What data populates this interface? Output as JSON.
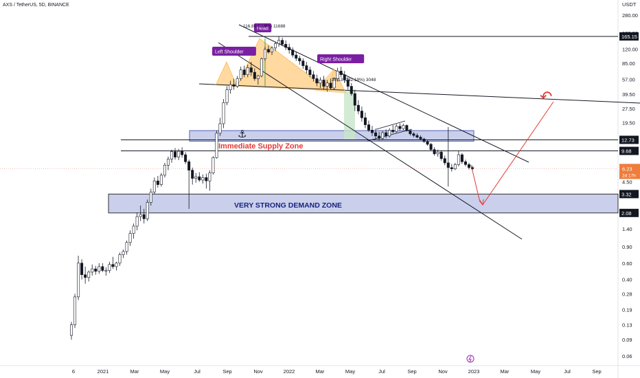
{
  "header": {
    "title": "AXS / TetherUS, 5D, BINANCE",
    "currency": "USDT"
  },
  "chart_data": {
    "type": "candlestick",
    "symbol": "AXS / TetherUS",
    "interval": "5D",
    "exchange": "BINANCE",
    "y_scale": "log",
    "y_ticks": [
      "280.00",
      "180.00",
      "120.00",
      "85.00",
      "57.00",
      "39.50",
      "27.50",
      "19.50",
      "12.73",
      "9.68",
      "6.23",
      "4.50",
      "3.32",
      "2.08",
      "1.40",
      "0.90",
      "0.60",
      "0.40",
      "0.28",
      "0.19",
      "0.13",
      "0.09",
      "0.06"
    ],
    "y_tick_values": [
      280,
      180,
      120,
      85,
      57,
      39.5,
      27.5,
      19.5,
      12.73,
      9.68,
      6.23,
      4.5,
      3.32,
      2.08,
      1.4,
      0.9,
      0.6,
      0.4,
      0.28,
      0.19,
      0.13,
      0.09,
      0.06
    ],
    "x_ticks": [
      "6",
      "2021",
      "Mar",
      "May",
      "Jul",
      "Sep",
      "Nov",
      "2022",
      "Mar",
      "May",
      "Jul",
      "Sep",
      "Nov",
      "2023",
      "Mar",
      "May",
      "Jul",
      "Sep"
    ],
    "price_labels": [
      {
        "value": 165.15,
        "text": "165.15",
        "style": "dark"
      },
      {
        "value": 12.73,
        "text": "12.73",
        "style": "dark"
      },
      {
        "value": 9.68,
        "text": "9.68",
        "style": "dark"
      },
      {
        "value": 6.23,
        "text": "6.23",
        "sub": "2d 17h",
        "style": "current"
      },
      {
        "value": 3.32,
        "text": "3.32",
        "style": "dark"
      },
      {
        "value": 2.08,
        "text": "2.08",
        "style": "dark"
      }
    ],
    "current_price": 6.23,
    "horizontal_levels": [
      165.15,
      12.73,
      9.68,
      3.32,
      2.08
    ],
    "zones": [
      {
        "name": "Immediate Supply Zone",
        "low": 12.73,
        "high": 16.0
      },
      {
        "name": "VERY STRONG DEMAND ZONE",
        "low": 2.08,
        "high": 3.32
      }
    ],
    "annotations": {
      "head": "Head",
      "left_shoulder": "Left Shoulder",
      "right_shoulder": "Right Shoulder",
      "supply_label": "Immediate Supply Zone",
      "demand_label": "VERY STRONG DEMAND ZONE",
      "measure_top": "116.88 (... 9%) 11688",
      "measure_mid": "30.13 (242.19%) 3048",
      "anchor": "⚓"
    },
    "candles": [
      {
        "o": 0.1,
        "h": 0.14,
        "l": 0.09,
        "c": 0.13
      },
      {
        "o": 0.13,
        "h": 0.28,
        "l": 0.12,
        "c": 0.26
      },
      {
        "o": 0.26,
        "h": 0.72,
        "l": 0.24,
        "c": 0.6
      },
      {
        "o": 0.6,
        "h": 0.66,
        "l": 0.4,
        "c": 0.45
      },
      {
        "o": 0.45,
        "h": 0.55,
        "l": 0.36,
        "c": 0.42
      },
      {
        "o": 0.42,
        "h": 0.5,
        "l": 0.38,
        "c": 0.48
      },
      {
        "o": 0.48,
        "h": 0.58,
        "l": 0.44,
        "c": 0.52
      },
      {
        "o": 0.52,
        "h": 0.56,
        "l": 0.45,
        "c": 0.49
      },
      {
        "o": 0.49,
        "h": 0.6,
        "l": 0.46,
        "c": 0.55
      },
      {
        "o": 0.55,
        "h": 0.6,
        "l": 0.48,
        "c": 0.5
      },
      {
        "o": 0.5,
        "h": 0.54,
        "l": 0.44,
        "c": 0.5
      },
      {
        "o": 0.5,
        "h": 0.62,
        "l": 0.47,
        "c": 0.58
      },
      {
        "o": 0.58,
        "h": 0.7,
        "l": 0.52,
        "c": 0.55
      },
      {
        "o": 0.55,
        "h": 0.62,
        "l": 0.5,
        "c": 0.6
      },
      {
        "o": 0.6,
        "h": 0.78,
        "l": 0.56,
        "c": 0.74
      },
      {
        "o": 0.74,
        "h": 0.84,
        "l": 0.68,
        "c": 0.8
      },
      {
        "o": 0.8,
        "h": 1.05,
        "l": 0.74,
        "c": 1.0
      },
      {
        "o": 1.0,
        "h": 1.35,
        "l": 0.92,
        "c": 1.25
      },
      {
        "o": 1.25,
        "h": 1.6,
        "l": 1.1,
        "c": 1.5
      },
      {
        "o": 1.5,
        "h": 2.1,
        "l": 1.35,
        "c": 1.9
      },
      {
        "o": 1.9,
        "h": 2.5,
        "l": 1.7,
        "c": 2.0
      },
      {
        "o": 2.0,
        "h": 2.3,
        "l": 1.6,
        "c": 1.8
      },
      {
        "o": 1.8,
        "h": 2.9,
        "l": 1.7,
        "c": 2.7
      },
      {
        "o": 2.7,
        "h": 3.8,
        "l": 2.5,
        "c": 3.5
      },
      {
        "o": 3.5,
        "h": 5.0,
        "l": 3.3,
        "c": 4.6
      },
      {
        "o": 4.6,
        "h": 5.2,
        "l": 3.9,
        "c": 4.2
      },
      {
        "o": 4.2,
        "h": 5.6,
        "l": 4.0,
        "c": 5.3
      },
      {
        "o": 5.3,
        "h": 7.2,
        "l": 5.0,
        "c": 6.8
      },
      {
        "o": 6.8,
        "h": 8.4,
        "l": 6.0,
        "c": 7.9
      },
      {
        "o": 7.9,
        "h": 10.0,
        "l": 7.2,
        "c": 9.5
      },
      {
        "o": 9.5,
        "h": 10.4,
        "l": 7.8,
        "c": 8.3
      },
      {
        "o": 8.3,
        "h": 10.2,
        "l": 7.7,
        "c": 9.6
      },
      {
        "o": 9.6,
        "h": 10.6,
        "l": 8.2,
        "c": 8.8
      },
      {
        "o": 8.8,
        "h": 9.4,
        "l": 7.0,
        "c": 7.4
      },
      {
        "o": 7.4,
        "h": 7.8,
        "l": 2.3,
        "c": 6.0
      },
      {
        "o": 6.0,
        "h": 6.4,
        "l": 4.2,
        "c": 4.9
      },
      {
        "o": 4.9,
        "h": 5.6,
        "l": 4.4,
        "c": 5.1
      },
      {
        "o": 5.1,
        "h": 5.7,
        "l": 4.5,
        "c": 4.7
      },
      {
        "o": 4.7,
        "h": 5.4,
        "l": 4.3,
        "c": 5.0
      },
      {
        "o": 5.0,
        "h": 5.5,
        "l": 3.8,
        "c": 4.6
      },
      {
        "o": 4.6,
        "h": 6.0,
        "l": 3.6,
        "c": 5.6
      },
      {
        "o": 5.6,
        "h": 8.5,
        "l": 5.4,
        "c": 8.2
      },
      {
        "o": 8.2,
        "h": 16.0,
        "l": 8.0,
        "c": 15.0
      },
      {
        "o": 15.0,
        "h": 22.0,
        "l": 14.0,
        "c": 19.0
      },
      {
        "o": 19.0,
        "h": 35.0,
        "l": 17.0,
        "c": 32.0
      },
      {
        "o": 32.0,
        "h": 48.0,
        "l": 30.0,
        "c": 44.0
      },
      {
        "o": 44.0,
        "h": 55.0,
        "l": 40.0,
        "c": 50.0
      },
      {
        "o": 50.0,
        "h": 58.0,
        "l": 44.0,
        "c": 48.0
      },
      {
        "o": 48.0,
        "h": 62.0,
        "l": 46.0,
        "c": 58.0
      },
      {
        "o": 58.0,
        "h": 78.0,
        "l": 55.0,
        "c": 72.0
      },
      {
        "o": 72.0,
        "h": 80.0,
        "l": 60.0,
        "c": 64.0
      },
      {
        "o": 64.0,
        "h": 82.0,
        "l": 60.0,
        "c": 76.0
      },
      {
        "o": 76.0,
        "h": 88.0,
        "l": 62.0,
        "c": 68.0
      },
      {
        "o": 68.0,
        "h": 75.0,
        "l": 55.0,
        "c": 58.0
      },
      {
        "o": 58.0,
        "h": 64.0,
        "l": 50.0,
        "c": 62.0
      },
      {
        "o": 62.0,
        "h": 98.0,
        "l": 60.0,
        "c": 95.0
      },
      {
        "o": 95.0,
        "h": 128.0,
        "l": 90.0,
        "c": 120.0
      },
      {
        "o": 120.0,
        "h": 132.0,
        "l": 108.0,
        "c": 112.0
      },
      {
        "o": 112.0,
        "h": 130.0,
        "l": 104.0,
        "c": 124.0
      },
      {
        "o": 124.0,
        "h": 145.0,
        "l": 115.0,
        "c": 138.0
      },
      {
        "o": 138.0,
        "h": 165.0,
        "l": 128.0,
        "c": 150.0
      },
      {
        "o": 150.0,
        "h": 160.0,
        "l": 130.0,
        "c": 136.0
      },
      {
        "o": 136.0,
        "h": 150.0,
        "l": 118.0,
        "c": 126.0
      },
      {
        "o": 126.0,
        "h": 138.0,
        "l": 108.0,
        "c": 118.0
      },
      {
        "o": 118.0,
        "h": 126.0,
        "l": 98.0,
        "c": 104.0
      },
      {
        "o": 104.0,
        "h": 112.0,
        "l": 90.0,
        "c": 96.0
      },
      {
        "o": 96.0,
        "h": 102.0,
        "l": 82.0,
        "c": 90.0
      },
      {
        "o": 90.0,
        "h": 96.0,
        "l": 74.0,
        "c": 80.0
      },
      {
        "o": 80.0,
        "h": 88.0,
        "l": 66.0,
        "c": 72.0
      },
      {
        "o": 72.0,
        "h": 78.0,
        "l": 60.0,
        "c": 64.0
      },
      {
        "o": 64.0,
        "h": 70.0,
        "l": 54.0,
        "c": 58.0
      },
      {
        "o": 58.0,
        "h": 64.0,
        "l": 48.0,
        "c": 52.0
      },
      {
        "o": 52.0,
        "h": 60.0,
        "l": 46.0,
        "c": 56.0
      },
      {
        "o": 56.0,
        "h": 62.0,
        "l": 44.0,
        "c": 48.0
      },
      {
        "o": 48.0,
        "h": 56.0,
        "l": 42.0,
        "c": 52.0
      },
      {
        "o": 52.0,
        "h": 58.0,
        "l": 44.0,
        "c": 46.0
      },
      {
        "o": 46.0,
        "h": 60.0,
        "l": 44.0,
        "c": 58.0
      },
      {
        "o": 58.0,
        "h": 76.0,
        "l": 54.0,
        "c": 70.0
      },
      {
        "o": 70.0,
        "h": 78.0,
        "l": 60.0,
        "c": 64.0
      },
      {
        "o": 64.0,
        "h": 70.0,
        "l": 52.0,
        "c": 56.0
      },
      {
        "o": 56.0,
        "h": 60.0,
        "l": 44.0,
        "c": 48.0
      },
      {
        "o": 48.0,
        "h": 52.0,
        "l": 38.0,
        "c": 40.0
      },
      {
        "o": 40.0,
        "h": 44.0,
        "l": 26.0,
        "c": 30.0
      },
      {
        "o": 30.0,
        "h": 34.0,
        "l": 24.0,
        "c": 26.0
      },
      {
        "o": 26.0,
        "h": 29.0,
        "l": 20.0,
        "c": 22.0
      },
      {
        "o": 22.0,
        "h": 25.0,
        "l": 17.0,
        "c": 18.5
      },
      {
        "o": 18.5,
        "h": 20.5,
        "l": 15.5,
        "c": 16.2
      },
      {
        "o": 16.2,
        "h": 18.0,
        "l": 14.0,
        "c": 15.2
      },
      {
        "o": 15.2,
        "h": 16.8,
        "l": 12.8,
        "c": 14.0
      },
      {
        "o": 14.0,
        "h": 15.5,
        "l": 12.5,
        "c": 13.2
      },
      {
        "o": 13.2,
        "h": 15.8,
        "l": 12.8,
        "c": 15.2
      },
      {
        "o": 15.2,
        "h": 16.5,
        "l": 13.2,
        "c": 14.0
      },
      {
        "o": 14.0,
        "h": 17.0,
        "l": 13.5,
        "c": 16.2
      },
      {
        "o": 16.2,
        "h": 18.4,
        "l": 15.0,
        "c": 15.6
      },
      {
        "o": 15.6,
        "h": 18.8,
        "l": 15.2,
        "c": 17.8
      },
      {
        "o": 17.8,
        "h": 19.2,
        "l": 16.0,
        "c": 16.8
      },
      {
        "o": 16.8,
        "h": 19.0,
        "l": 16.2,
        "c": 18.2
      },
      {
        "o": 18.2,
        "h": 18.6,
        "l": 15.6,
        "c": 16.0
      },
      {
        "o": 16.0,
        "h": 16.4,
        "l": 14.2,
        "c": 14.8
      },
      {
        "o": 14.8,
        "h": 15.4,
        "l": 13.6,
        "c": 14.2
      },
      {
        "o": 14.2,
        "h": 15.0,
        "l": 13.2,
        "c": 13.6
      },
      {
        "o": 13.6,
        "h": 14.2,
        "l": 12.6,
        "c": 13.0
      },
      {
        "o": 13.0,
        "h": 13.4,
        "l": 11.8,
        "c": 12.2
      },
      {
        "o": 12.2,
        "h": 12.8,
        "l": 11.0,
        "c": 11.4
      },
      {
        "o": 11.4,
        "h": 11.8,
        "l": 9.6,
        "c": 10.0
      },
      {
        "o": 10.0,
        "h": 10.6,
        "l": 8.6,
        "c": 9.0
      },
      {
        "o": 9.0,
        "h": 10.0,
        "l": 8.4,
        "c": 9.4
      },
      {
        "o": 9.4,
        "h": 9.8,
        "l": 7.6,
        "c": 8.0
      },
      {
        "o": 8.0,
        "h": 8.6,
        "l": 6.8,
        "c": 7.2
      },
      {
        "o": 7.2,
        "h": 17.5,
        "l": 4.0,
        "c": 6.4
      },
      {
        "o": 6.4,
        "h": 7.0,
        "l": 5.8,
        "c": 6.2
      },
      {
        "o": 6.2,
        "h": 7.2,
        "l": 6.0,
        "c": 6.9
      },
      {
        "o": 6.9,
        "h": 9.6,
        "l": 6.6,
        "c": 8.8
      },
      {
        "o": 8.8,
        "h": 9.2,
        "l": 7.0,
        "c": 7.4
      },
      {
        "o": 7.4,
        "h": 7.8,
        "l": 6.6,
        "c": 6.9
      },
      {
        "o": 6.9,
        "h": 7.2,
        "l": 6.1,
        "c": 6.4
      },
      {
        "o": 6.4,
        "h": 6.7,
        "l": 6.0,
        "c": 6.23
      }
    ],
    "bull_color": "#26a69a",
    "bear_color": "#ef5350",
    "zone_fill": "#c5cae9",
    "zone_border": "#3f51b5",
    "hs_fill": "#ffcc80",
    "label_purple": "#7b1fa2",
    "accent_red": "#e53935"
  }
}
